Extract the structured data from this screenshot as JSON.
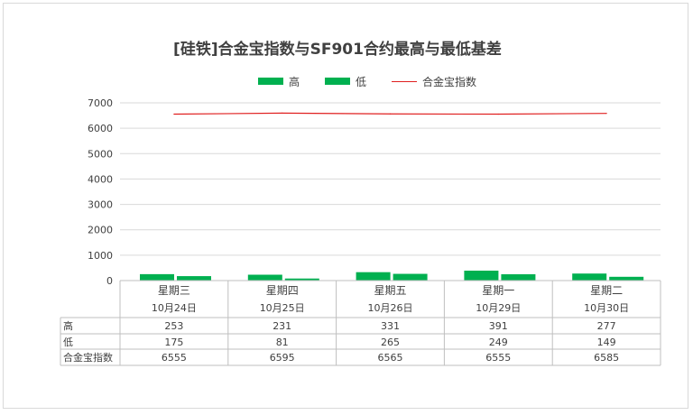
{
  "chart_data": {
    "type": "bar",
    "title": "[硅铁]合金宝指数与SF901合约最高与最低基差",
    "categories": [
      {
        "weekday": "星期三",
        "date": "10月24日"
      },
      {
        "weekday": "星期四",
        "date": "10月25日"
      },
      {
        "weekday": "星期五",
        "date": "10月26日"
      },
      {
        "weekday": "星期一",
        "date": "10月29日"
      },
      {
        "weekday": "星期二",
        "date": "10月30日"
      }
    ],
    "series": [
      {
        "name": "高",
        "kind": "bar",
        "color": "#00b050",
        "values": [
          253,
          231,
          331,
          391,
          277
        ]
      },
      {
        "name": "低",
        "kind": "bar",
        "color": "#00b050",
        "values": [
          175,
          81,
          265,
          249,
          149
        ]
      },
      {
        "name": "合金宝指数",
        "kind": "line",
        "color": "#e02020",
        "values": [
          6555,
          6595,
          6565,
          6555,
          6585
        ]
      }
    ],
    "ylim": [
      0,
      7000
    ],
    "yticks": [
      "0",
      "1000",
      "2000",
      "3000",
      "4000",
      "5000",
      "6000",
      "7000"
    ],
    "grid": true,
    "legend": "top",
    "data_table": true
  }
}
